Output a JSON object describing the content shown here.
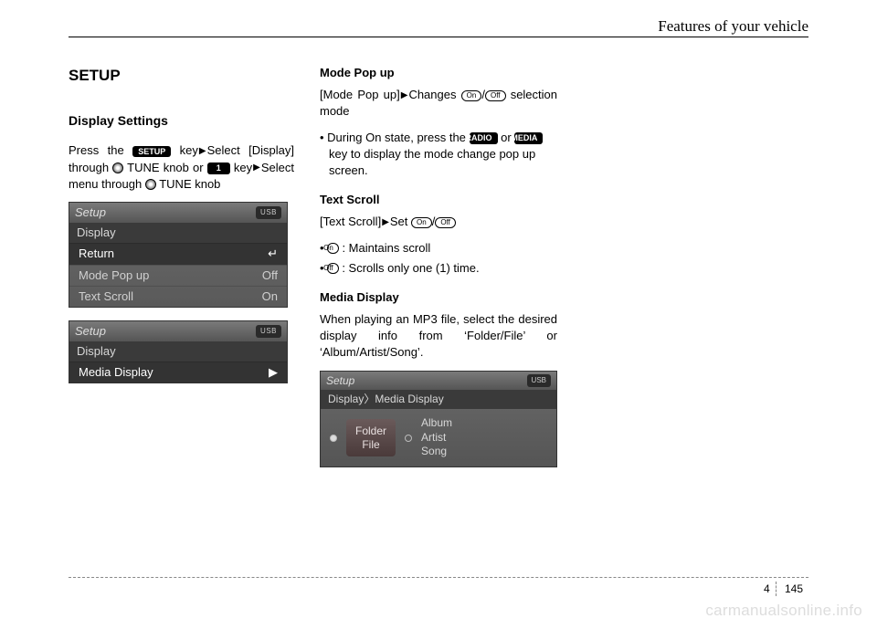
{
  "header": {
    "title": "Features of your vehicle"
  },
  "footer": {
    "section": "4",
    "page": "145"
  },
  "watermark": "carmanualsonline.info",
  "col1": {
    "h1": "SETUP",
    "h2": "Display Settings",
    "para_parts": {
      "p1": "Press the ",
      "setup_key": "SETUP",
      "p2": " key",
      "p3": "Select [Display] through ",
      "p4": " TUNE knob or ",
      "one_key": "1",
      "p5": " key",
      "p6": "Select menu through ",
      "p7": " TUNE knob"
    },
    "screen1": {
      "title": "Setup",
      "badge": "USB",
      "sub": "Display",
      "rows": [
        {
          "label": "Return",
          "right": "↵",
          "sel": true
        },
        {
          "label": "Mode Pop up",
          "right": "Off",
          "sel": false
        },
        {
          "label": "Text Scroll",
          "right": "On",
          "sel": false
        }
      ]
    },
    "screen2": {
      "title": "Setup",
      "badge": "USB",
      "sub": "Display",
      "rows": [
        {
          "label": "Media Display",
          "right": "▶",
          "sel": true
        }
      ]
    }
  },
  "col2": {
    "mode": {
      "h": "Mode Pop up",
      "line1a": "[Mode Pop up]",
      "line1b": "Changes ",
      "on": "On",
      "off": "Off",
      "line1c": " selection mode",
      "bullet_a": "During On state, press the ",
      "radio_key": "RADIO",
      "bullet_b": " or ",
      "media_key": "MEDIA",
      "bullet_c": " key to display the mode change pop up screen."
    },
    "text": {
      "h": "Text Scroll",
      "line_a": "[Text Scroll]",
      "line_b": "Set ",
      "on": "On",
      "off": "Off",
      "b1_on": "On",
      "b1_t": " : Maintains scroll",
      "b2_off": "Off",
      "b2_t": " : Scrolls only one (1) time."
    },
    "media": {
      "h": "Media Display",
      "p": "When playing an MP3 file, select the desired display info from ‘Folder/File’ or ‘Album/Artist/Song’."
    },
    "screen3": {
      "title": "Setup",
      "badge": "USB",
      "sub": "Display〉Media Display",
      "chip_l1": "Folder",
      "chip_l2": "File",
      "opt1": "Album",
      "opt2": "Artist",
      "opt3": "Song"
    }
  }
}
